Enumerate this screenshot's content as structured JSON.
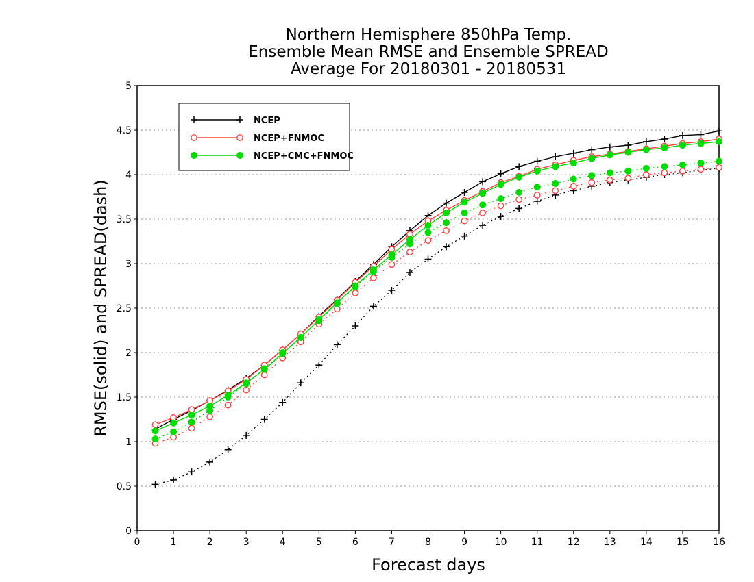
{
  "chart_data": {
    "type": "line",
    "title": [
      "Northern Hemisphere 850hPa Temp.",
      "Ensemble Mean RMSE and Ensemble SPREAD",
      "Average For 20180301 - 20180531"
    ],
    "xlabel": "Forecast days",
    "ylabel": "RMSE(solid) and SPREAD(dash)",
    "xlim": [
      0,
      16
    ],
    "ylim": [
      0,
      5
    ],
    "xticks": [
      0,
      1,
      2,
      3,
      4,
      5,
      6,
      7,
      8,
      9,
      10,
      11,
      12,
      13,
      14,
      15,
      16
    ],
    "yticks": [
      0,
      0.5,
      1,
      1.5,
      2,
      2.5,
      3,
      3.5,
      4,
      4.5,
      5
    ],
    "ytick_labels": [
      "0",
      "0.5",
      "1",
      "1.5",
      "2",
      "2.5",
      "3",
      "3.5",
      "4",
      "4.5",
      "5"
    ],
    "grid": "horizontal dotted",
    "legend_position": "top-left",
    "x": [
      0.5,
      1,
      1.5,
      2,
      2.5,
      3,
      3.5,
      4,
      4.5,
      5,
      5.5,
      6,
      6.5,
      7,
      7.5,
      8,
      8.5,
      9,
      9.5,
      10,
      10.5,
      11,
      11.5,
      12,
      12.5,
      13,
      13.5,
      14,
      14.5,
      15,
      15.5,
      16
    ],
    "series": [
      {
        "name": "NCEP",
        "color": "#000000",
        "marker": "plus",
        "rmse": [
          1.14,
          1.25,
          1.35,
          1.46,
          1.58,
          1.71,
          1.86,
          2.03,
          2.21,
          2.41,
          2.6,
          2.8,
          2.99,
          3.19,
          3.37,
          3.54,
          3.68,
          3.8,
          3.92,
          4.01,
          4.09,
          4.15,
          4.2,
          4.24,
          4.28,
          4.31,
          4.33,
          4.37,
          4.4,
          4.44,
          4.45,
          4.49
        ],
        "spread": [
          0.52,
          0.57,
          0.66,
          0.77,
          0.91,
          1.07,
          1.25,
          1.44,
          1.66,
          1.86,
          2.09,
          2.3,
          2.52,
          2.7,
          2.9,
          3.05,
          3.19,
          3.31,
          3.43,
          3.53,
          3.62,
          3.7,
          3.77,
          3.82,
          3.87,
          3.91,
          3.94,
          3.97,
          4.0,
          4.02,
          4.05,
          4.07
        ]
      },
      {
        "name": "NCEP+FNMOC",
        "color": "#ff4040",
        "marker": "open-circle",
        "rmse": [
          1.19,
          1.27,
          1.36,
          1.46,
          1.57,
          1.7,
          1.86,
          2.03,
          2.21,
          2.4,
          2.59,
          2.79,
          2.97,
          3.16,
          3.33,
          3.48,
          3.6,
          3.71,
          3.81,
          3.91,
          3.98,
          4.06,
          4.11,
          4.16,
          4.2,
          4.23,
          4.26,
          4.29,
          4.32,
          4.35,
          4.37,
          4.4
        ],
        "spread": [
          0.98,
          1.05,
          1.15,
          1.28,
          1.41,
          1.58,
          1.75,
          1.94,
          2.12,
          2.32,
          2.49,
          2.67,
          2.84,
          2.99,
          3.13,
          3.26,
          3.37,
          3.48,
          3.57,
          3.65,
          3.72,
          3.77,
          3.82,
          3.87,
          3.91,
          3.94,
          3.96,
          4.0,
          4.02,
          4.04,
          4.06,
          4.08
        ]
      },
      {
        "name": "NCEP+CMC+FNMOC",
        "color": "#00dd00",
        "marker": "filled-circle",
        "rmse": [
          1.12,
          1.21,
          1.3,
          1.4,
          1.52,
          1.66,
          1.81,
          1.99,
          2.17,
          2.37,
          2.56,
          2.75,
          2.93,
          3.1,
          3.27,
          3.43,
          3.57,
          3.69,
          3.79,
          3.89,
          3.97,
          4.04,
          4.09,
          4.13,
          4.18,
          4.22,
          4.25,
          4.28,
          4.3,
          4.33,
          4.35,
          4.37
        ],
        "spread": [
          1.03,
          1.11,
          1.22,
          1.35,
          1.5,
          1.65,
          1.82,
          2.0,
          2.17,
          2.36,
          2.55,
          2.74,
          2.91,
          3.07,
          3.22,
          3.35,
          3.46,
          3.57,
          3.66,
          3.73,
          3.8,
          3.86,
          3.9,
          3.95,
          3.99,
          4.02,
          4.04,
          4.07,
          4.09,
          4.11,
          4.13,
          4.15
        ]
      }
    ]
  }
}
